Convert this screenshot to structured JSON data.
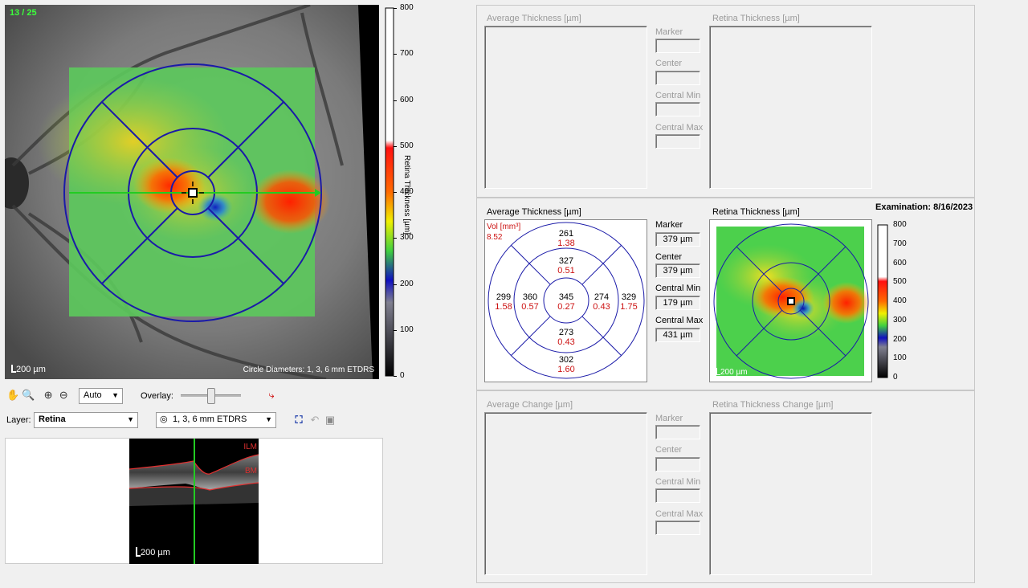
{
  "fundus": {
    "counter": "13 / 25",
    "scale_label": "200 µm",
    "circle_label": "Circle Diameters: 1, 3, 6 mm ETDRS"
  },
  "colorbar": {
    "axis_label": "Retina Thickness [µm]",
    "ticks": [
      "800",
      "700",
      "600",
      "500",
      "400",
      "300",
      "200",
      "100",
      "0"
    ]
  },
  "toolbar": {
    "pan_icon": "hand-icon",
    "zoom_icon": "magnifier-icon",
    "zoom_in_icon": "zoom-in-icon",
    "zoom_out_icon": "zoom-out-icon",
    "zoom_value": "Auto",
    "overlay_label": "Overlay:",
    "overlay_level": 0.5,
    "layer_label": "Layer:",
    "layer_value": "Retina",
    "grid_value": "1, 3, 6 mm ETDRS"
  },
  "bscan": {
    "ilm_label": "ILM",
    "bm_label": "BM",
    "scale_label": "200 µm"
  },
  "top_section": {
    "average_thickness_label": "Average Thickness [µm]",
    "retina_thickness_label": "Retina Thickness [µm]",
    "marker_label": "Marker",
    "center_label": "Center",
    "central_min_label": "Central Min",
    "central_max_label": "Central Max"
  },
  "middle_section": {
    "average_thickness_label": "Average Thickness [µm]",
    "retina_thickness_label": "Retina Thickness [µm]",
    "examination": "Examination: 8/16/2023",
    "vol_label": "Vol [mm³]",
    "vol_value": "8.52",
    "marker_label": "Marker",
    "marker_value": "379 µm",
    "center_label": "Center",
    "center_value": "379 µm",
    "central_min_label": "Central Min",
    "central_min_value": "179 µm",
    "central_max_label": "Central Max",
    "central_max_value": "431 µm",
    "map_scale": "200 µm",
    "sectors": {
      "center": {
        "t": "345",
        "v": "0.27"
      },
      "inner_top": {
        "t": "327",
        "v": "0.51"
      },
      "inner_bottom": {
        "t": "273",
        "v": "0.43"
      },
      "inner_left": {
        "t": "360",
        "v": "0.57"
      },
      "inner_right": {
        "t": "274",
        "v": "0.43"
      },
      "outer_top": {
        "t": "261",
        "v": "1.38"
      },
      "outer_bottom": {
        "t": "302",
        "v": "1.60"
      },
      "outer_left": {
        "t": "299",
        "v": "1.58"
      },
      "outer_right": {
        "t": "329",
        "v": "1.75"
      }
    },
    "colorbar_ticks": [
      "800",
      "700",
      "600",
      "500",
      "400",
      "300",
      "200",
      "100",
      "0"
    ]
  },
  "bottom_section": {
    "average_change_label": "Average Change [µm]",
    "retina_change_label": "Retina Thickness Change [µm]",
    "marker_label": "Marker",
    "center_label": "Center",
    "central_min_label": "Central Min",
    "central_max_label": "Central Max"
  },
  "colors": {
    "grid_blue": "#1a1aa8",
    "scan_line": "#22cc22",
    "red_value": "#cc1111"
  }
}
